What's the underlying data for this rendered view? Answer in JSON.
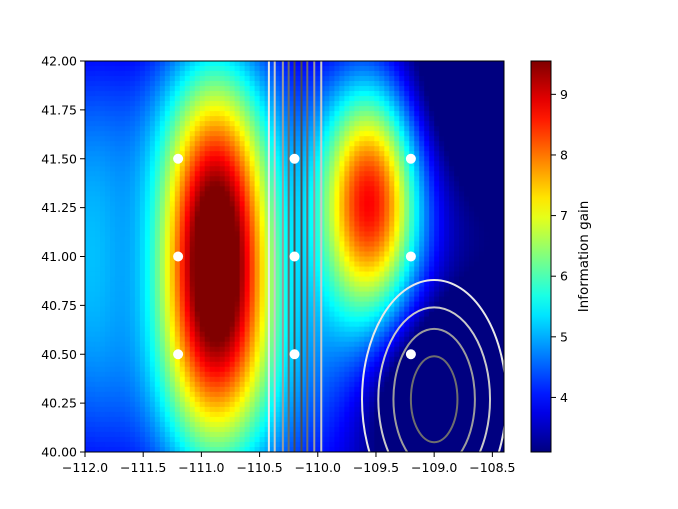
{
  "chart_data": {
    "type": "heatmap",
    "title": "",
    "xlabel": "",
    "ylabel": "",
    "xlim": [
      -112.0,
      -108.4
    ],
    "ylim": [
      40.0,
      42.0
    ],
    "x_ticks": [
      -112.0,
      -111.5,
      -111.0,
      -110.5,
      -110.0,
      -109.5,
      -109.0,
      -108.5
    ],
    "x_tick_labels": [
      "−112.0",
      "−111.5",
      "−111.0",
      "−110.5",
      "−110.0",
      "−109.5",
      "−109.0",
      "−108.5"
    ],
    "y_ticks": [
      40.0,
      40.25,
      40.5,
      40.75,
      41.0,
      41.25,
      41.5,
      41.75,
      42.0
    ],
    "y_tick_labels": [
      "40.00",
      "40.25",
      "40.50",
      "40.75",
      "41.00",
      "41.25",
      "41.50",
      "41.75",
      "42.00"
    ],
    "colormap": "jet",
    "colorbar": {
      "label": "Information gain",
      "range": [
        3.1,
        9.55
      ],
      "ticks": [
        4,
        5,
        6,
        7,
        8,
        9
      ],
      "tick_labels": [
        "4",
        "5",
        "6",
        "7",
        "8",
        "9"
      ]
    },
    "field": {
      "base": 3.1,
      "peaks": [
        {
          "x": -110.88,
          "y": 40.98,
          "amplitude": 6.4,
          "spread_x": 0.33,
          "spread_y": 0.62
        },
        {
          "x": -109.55,
          "y": 41.3,
          "amplitude": 5.0,
          "spread_x": 0.3,
          "spread_y": 0.42
        },
        {
          "x": -110.9,
          "y": 41.6,
          "amplitude": 1.1,
          "spread_x": 0.8,
          "spread_y": 0.45
        },
        {
          "x": -110.85,
          "y": 40.35,
          "amplitude": 1.3,
          "spread_x": 0.8,
          "spread_y": 0.5
        },
        {
          "x": -109.6,
          "y": 40.55,
          "amplitude": 0.9,
          "spread_x": 0.6,
          "spread_y": 0.6
        },
        {
          "x": -112.0,
          "y": 41.0,
          "amplitude": 1.6,
          "spread_x": 0.3,
          "spread_y": 0.7
        }
      ],
      "dips": [
        {
          "x": -109.0,
          "y": 40.27,
          "amplitude": 2.2,
          "spread_x": 0.45,
          "spread_y": 0.35
        },
        {
          "x": -108.7,
          "y": 41.9,
          "amplitude": 1.0,
          "spread_x": 0.45,
          "spread_y": 0.35
        }
      ]
    },
    "points": [
      {
        "x": -111.2,
        "y": 40.5
      },
      {
        "x": -111.2,
        "y": 41.0
      },
      {
        "x": -111.2,
        "y": 41.5
      },
      {
        "x": -110.2,
        "y": 40.5
      },
      {
        "x": -110.2,
        "y": 41.0
      },
      {
        "x": -110.2,
        "y": 41.5
      },
      {
        "x": -109.2,
        "y": 40.5
      },
      {
        "x": -109.2,
        "y": 41.0
      },
      {
        "x": -109.2,
        "y": 41.5
      }
    ],
    "point_color": "#ffffff",
    "vertical_lines": [
      {
        "x": -110.42,
        "color": "#e8e8e8"
      },
      {
        "x": -110.37,
        "color": "#c9c9c9"
      },
      {
        "x": -110.3,
        "color": "#9c9c9c"
      },
      {
        "x": -110.25,
        "color": "#6e6e6e"
      },
      {
        "x": -110.2,
        "color": "#4d4d4d"
      },
      {
        "x": -110.14,
        "color": "#4d4d4d"
      },
      {
        "x": -110.09,
        "color": "#6e6e6e"
      },
      {
        "x": -110.03,
        "color": "#9c9c9c"
      },
      {
        "x": -109.97,
        "color": "#c9c9c9"
      }
    ],
    "ellipses": [
      {
        "cx": -109.0,
        "cy": 40.27,
        "rx": 0.62,
        "ry": 0.61,
        "color": "#e8e8e8"
      },
      {
        "cx": -109.0,
        "cy": 40.27,
        "rx": 0.48,
        "ry": 0.47,
        "color": "#c9c9c9"
      },
      {
        "cx": -109.0,
        "cy": 40.27,
        "rx": 0.35,
        "ry": 0.36,
        "color": "#9c9c9c"
      },
      {
        "cx": -109.0,
        "cy": 40.27,
        "rx": 0.2,
        "ry": 0.22,
        "color": "#6e6e6e"
      }
    ]
  }
}
